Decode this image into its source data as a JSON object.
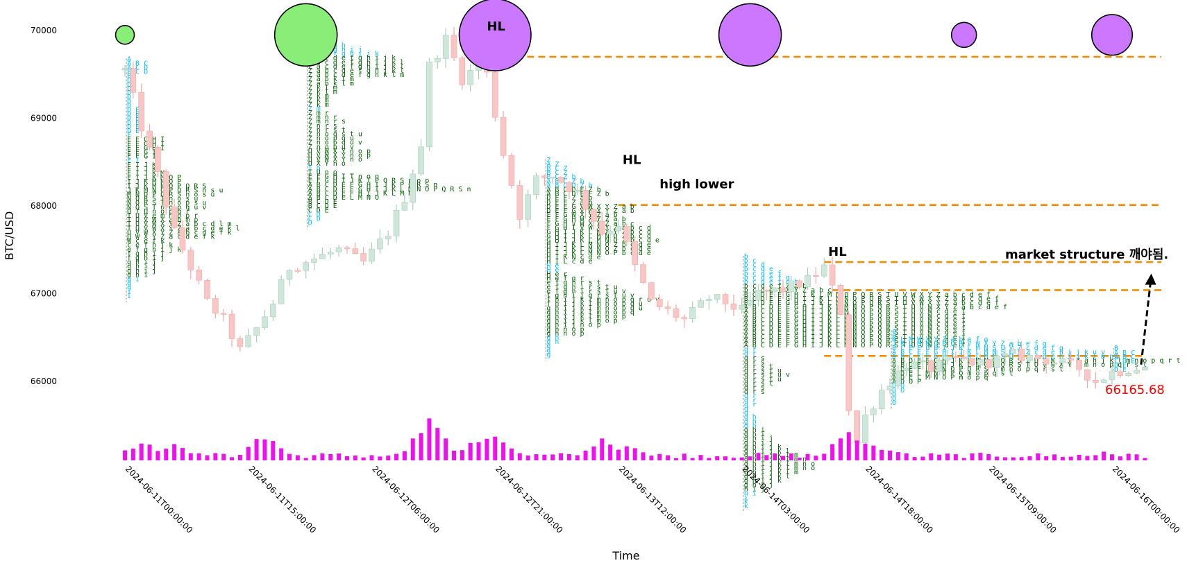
{
  "chart_data": {
    "type": "candlestick",
    "ylabel": "BTC/USD",
    "xlabel": "Time",
    "ylim": [
      64850,
      70300
    ],
    "xlim": [
      "2024-06-11T00:00:00",
      "2024-06-16T06:00:00"
    ],
    "y_ticks": [
      66000,
      67000,
      68000,
      69000,
      70000
    ],
    "x_ticks": [
      "2024-06-11T00:00:00",
      "2024-06-11T15:00:00",
      "2024-06-12T06:00:00",
      "2024-06-12T21:00:00",
      "2024-06-13T12:00:00",
      "2024-06-14T03:00:00",
      "2024-06-14T18:00:00",
      "2024-06-15T09:00:00",
      "2024-06-16T00:00:00"
    ],
    "colors": {
      "up": "#cfe6db",
      "up_edge": "#a9cfbd",
      "down": "#f8c7c5",
      "down_edge": "#f4a8a5",
      "volume": "#ee11ee",
      "level_line": "#f28c00",
      "bubble_buy": "#88ee77",
      "bubble_sell": "#cc77ff",
      "tpo_cyan": "#00bfff",
      "tpo_green": "#006400",
      "last_price": "#ff0000"
    },
    "price_path": [
      [
        "2024-06-11T00:00:00",
        69550
      ],
      [
        "2024-06-11T02:00:00",
        68900
      ],
      [
        "2024-06-11T04:00:00",
        68350
      ],
      [
        "2024-06-11T06:00:00",
        67700
      ],
      [
        "2024-06-11T08:00:00",
        67300
      ],
      [
        "2024-06-11T10:00:00",
        66900
      ],
      [
        "2024-06-11T12:00:00",
        66700
      ],
      [
        "2024-06-11T14:00:00",
        66350
      ],
      [
        "2024-06-11T16:00:00",
        66600
      ],
      [
        "2024-06-11T18:00:00",
        66900
      ],
      [
        "2024-06-11T20:00:00",
        67300
      ],
      [
        "2024-06-11T23:00:00",
        67400
      ],
      [
        "2024-06-12T02:00:00",
        67500
      ],
      [
        "2024-06-12T05:00:00",
        67350
      ],
      [
        "2024-06-12T08:00:00",
        67700
      ],
      [
        "2024-06-12T10:00:00",
        68100
      ],
      [
        "2024-06-12T12:00:00",
        68700
      ],
      [
        "2024-06-12T13:00:00",
        69600
      ],
      [
        "2024-06-12T15:00:00",
        69900
      ],
      [
        "2024-06-12T17:00:00",
        69450
      ],
      [
        "2024-06-12T19:00:00",
        69600
      ],
      [
        "2024-06-12T20:00:00",
        69500
      ],
      [
        "2024-06-12T22:00:00",
        68600
      ],
      [
        "2024-06-13T00:00:00",
        67900
      ],
      [
        "2024-06-13T02:00:00",
        68300
      ],
      [
        "2024-06-13T04:00:00",
        68350
      ],
      [
        "2024-06-13T07:00:00",
        68150
      ],
      [
        "2024-06-13T10:00:00",
        67700
      ],
      [
        "2024-06-13T12:00:00",
        67800
      ],
      [
        "2024-06-13T14:00:00",
        67300
      ],
      [
        "2024-06-13T16:00:00",
        66900
      ],
      [
        "2024-06-13T18:00:00",
        66800
      ],
      [
        "2024-06-13T20:00:00",
        66700
      ],
      [
        "2024-06-13T23:00:00",
        66950
      ],
      [
        "2024-06-14T01:00:00",
        66900
      ],
      [
        "2024-06-14T03:00:00",
        66800
      ],
      [
        "2024-06-14T05:00:00",
        67000
      ],
      [
        "2024-06-14T08:00:00",
        67050
      ],
      [
        "2024-06-14T11:00:00",
        67150
      ],
      [
        "2024-06-14T13:00:00",
        67300
      ],
      [
        "2024-06-14T15:00:00",
        66800
      ],
      [
        "2024-06-14T16:00:00",
        65700
      ],
      [
        "2024-06-14T17:00:00",
        65300
      ],
      [
        "2024-06-14T18:00:00",
        65600
      ],
      [
        "2024-06-14T20:00:00",
        65900
      ],
      [
        "2024-06-14T23:00:00",
        66200
      ],
      [
        "2024-06-15T02:00:00",
        66150
      ],
      [
        "2024-06-15T05:00:00",
        66250
      ],
      [
        "2024-06-15T08:00:00",
        66200
      ],
      [
        "2024-06-15T12:00:00",
        66300
      ],
      [
        "2024-06-15T16:00:00",
        66250
      ],
      [
        "2024-06-15T20:00:00",
        66150
      ],
      [
        "2024-06-15T22:00:00",
        66000
      ],
      [
        "2024-06-16T00:00:00",
        66100
      ],
      [
        "2024-06-16T02:00:00",
        66150
      ],
      [
        "2024-06-16T04:00:00",
        66165.68
      ]
    ],
    "volume_spikes": [
      [
        "2024-06-11T02:00:00",
        0.5
      ],
      [
        "2024-06-11T06:00:00",
        0.45
      ],
      [
        "2024-06-11T17:00:00",
        0.65
      ],
      [
        "2024-06-12T13:00:00",
        1.0
      ],
      [
        "2024-06-12T19:00:00",
        0.55
      ],
      [
        "2024-06-12T21:00:00",
        0.7
      ],
      [
        "2024-06-13T10:00:00",
        0.5
      ],
      [
        "2024-06-13T13:00:00",
        0.45
      ],
      [
        "2024-06-14T16:00:00",
        0.75
      ],
      [
        "2024-06-14T18:00:00",
        0.5
      ],
      [
        "2024-06-14T21:00:00",
        0.3
      ],
      [
        "2024-06-15T23:00:00",
        0.2
      ]
    ],
    "levels": [
      {
        "from": "2024-06-12T19:30:00",
        "to": "2024-06-16T06:00:00",
        "y": 69700
      },
      {
        "from": "2024-06-13T12:00:00",
        "to": "2024-06-16T06:00:00",
        "y": 68010
      },
      {
        "from": "2024-06-14T13:00:00",
        "to": "2024-06-16T06:00:00",
        "y": 67360
      },
      {
        "from": "2024-06-14T14:00:00",
        "to": "2024-06-16T06:00:00",
        "y": 67040
      },
      {
        "from": "2024-06-14T13:00:00",
        "to": "2024-06-16T04:00:00",
        "y": 66290
      }
    ],
    "bubbles": [
      {
        "x": "2024-06-11T00:00:00",
        "y": 69950,
        "size": 0.3,
        "kind": "buy"
      },
      {
        "x": "2024-06-11T22:00:00",
        "y": 69950,
        "size": 1.0,
        "kind": "buy"
      },
      {
        "x": "2024-06-12T21:00:00",
        "y": 69950,
        "size": 1.15,
        "kind": "sell"
      },
      {
        "x": "2024-06-14T04:00:00",
        "y": 69950,
        "size": 1.0,
        "kind": "sell"
      },
      {
        "x": "2024-06-15T06:00:00",
        "y": 69950,
        "size": 0.4,
        "kind": "sell"
      },
      {
        "x": "2024-06-16T00:00:00",
        "y": 69950,
        "size": 0.65,
        "kind": "sell"
      }
    ],
    "annotations": [
      {
        "text": "HL",
        "x": "2024-06-12T20:00:00",
        "y": 70000
      },
      {
        "text": "HL",
        "x": "2024-06-13T12:30:00",
        "y": 68480
      },
      {
        "text": "high lower",
        "x": "2024-06-13T17:00:00",
        "y": 68200
      },
      {
        "text": "HL",
        "x": "2024-06-14T13:30:00",
        "y": 67430
      },
      {
        "text": "market structure 깨야됨.",
        "x": "2024-06-15T11:00:00",
        "y": 67400
      }
    ],
    "last_price": {
      "value": "66165.68",
      "x": "2024-06-16T00:00:00",
      "y": 66080
    },
    "arrow": {
      "from": [
        "2024-06-16T01:00:00",
        66270
      ],
      "to": [
        "2024-06-16T03:00:00",
        67450
      ]
    },
    "tpo_profiles": [
      {
        "x": "2024-06-11T00:00:00",
        "top": 69650,
        "rows": [
          "A",
          "A B C",
          "A C D",
          "B C D",
          "B",
          "D",
          "D",
          "D",
          "D",
          "D",
          "D",
          "D",
          "D E",
          "D E",
          "D E",
          "D E",
          "D E",
          "D E",
          "E",
          "E F G H I",
          "E F G H I",
          "E F G H I",
          "E F G I",
          "E F G I",
          "E I",
          "E I J K",
          "E I J K",
          "E I J K M",
          "E I J K M O P",
          "I J K M N O P",
          "I J K M N O P Q R S",
          "J K M N O P Q R S n s u",
          "M N O P Q R S n o s u",
          "N Q R S T n o s u",
          "N Q R S T n o p s u",
          "N Q S T n o p q u v",
          "Q T U n o p q r",
          "T U V e m n o p r",
          "T U V W X a b m p",
          "T U V W X Y Z a b c d l m",
          "T U V W X Y Z a b c d e k l",
          "U V W X Y Z a b c d e f k",
          "U W X Y Z a c d e f k",
          "W c e f k",
          "c e f h j k",
          "e f g h i j k",
          "f g h i j",
          "f g h i j",
          "g h i j",
          "g h i j",
          "g h i j",
          "g h i",
          "g i",
          "g",
          "g",
          "i",
          "i"
        ]
      },
      {
        "x": "2024-06-11T22:00:00",
        "top": 70000,
        "rows": [
          "d",
          "d e",
          "d e",
          "d e f",
          "d e f g h",
          "d e f g h i j",
          "Z d e f g h i j k",
          "Z a c d e f g h i j k",
          "Z a c d e f g h i j k l",
          "Z a c d e f g h i j k l",
          "Z a b c d e f g h j k l",
          "Z a b c d e f g h k l m",
          "Z a b k l m",
          "Z a b k l m",
          "Z k l m",
          "Z k l m",
          "Z k m",
          "Z k m",
          "Z k m",
          "Z m",
          "Z m r",
          "Z m n r",
          "Z m n r s",
          "Z n r s",
          "Z n r s t",
          "Z n o q s t u",
          "Z n o p q u",
          "Z n o p q u v",
          "Z n o p u v",
          "U V W X Y n o p",
          "U V W X Y n o p",
          "U V W X Y n o",
          "U X Y n o",
          "T o",
          "T U n o",
          "E F G H I T n o p",
          "E F G H I J K T P Q R S n o p",
          "A B C D E F G H I J K P Q R S n",
          "A B C D E F G H I J K L M N O P Q R S n",
          "A B C D E F H I J K L M N",
          "A B C D E L M N O",
          "B C D E",
          "B C D E",
          "C D E",
          "C D",
          "C D",
          "D"
        ]
      },
      {
        "x": "2024-06-13T03:00:00",
        "top": 68500,
        "rows": [
          "Z",
          "A Z",
          "B C Z",
          "B C Z",
          "B C Z b",
          "A B C Z b",
          "A B C D Z b",
          "A B C D E Z b",
          "A B C D E F Z b",
          "D E F Z a b",
          "D E F Z a b",
          "D E F G V W X Y Z a b",
          "D E F G V W X Y Z a b",
          "E F G W X Y Z a b",
          "E F G H W X Y Z a b",
          "F G H V W X Y Z a b c",
          "F G H I V W X Y Z a b c d",
          "G H I J K L W X Y Z b c d",
          "G H I J K L M N O Z b c d",
          "G H I J K L M N O Z b c d e",
          "H I J K L M N O Z b c d e",
          "H I J K L M N O Z b c d e",
          "H I J K L M N O P b c d e",
          "H I K N c d e",
          "H I L c d e",
          "H e",
          "H e",
          "H e r",
          "H e f g r",
          "e f g h r s t",
          "e f g h i r s t u",
          "e f g h i r s t u v",
          "f g h i j q r s t u v",
          "f h i j k l m n o p q r u v",
          "f h i j k l m n o p q u",
          "g h i j k l m n o p q u",
          "g h i j k l m n o p q",
          "g h i j k l m n o p",
          "g h i j k l m o p",
          "g h i j n o p",
          "g h n o p",
          "g h n o p",
          "g h",
          "g h",
          "g",
          "g",
          "g"
        ]
      },
      {
        "x": "2024-06-14T03:00:00",
        "top": 67400,
        "rows": [
          "b",
          "b c",
          "b c d",
          "b c d e",
          "b c d e f",
          "b c d e f g",
          "b c d e f g h",
          "b c d e f Z a b",
          "b c d e f X Y Z a b c",
          "B C D E F G H I K L M N O P Q R S T U V W X Y Z a b c d e f",
          "B C D E F G H I J K L M N O P Q R S T U V W X Y Z a b c d e f",
          "B C D E F G H I J K L M N O P Q R S T U V W X Y Z a b c d e f",
          "A B C D E F G H I J K L M N O P Q R S T U V W X Y Z a b c d e f",
          "A B C D E F G H I J K L M N O P Q R S T U V W c d e f",
          "A B C D E F G H I J K L M N O P Q R S T U V W c d e f",
          "A B C D E F G H I J K L M N O P Q R S T U V W c d e f",
          "A B C D E F G H I J K L M N O P Q R S T U V W c d e f",
          "A B C D E F G H I J K L M N O P Q R S T U V W c d e f",
          "A B C D E F G H I J K L M N O P Q R S T U V W c d e f",
          "A B C D E F G H I J K L M N O P Q R S T U V W c d e f",
          "A B C D E F G H I J K L M N O P Q R S T U V W c d e f",
          "A B C D E F G H I J K L M N O P Q R S T U V W c d e f",
          "q r",
          "q r",
          "q r s",
          "q r s",
          "q r s t",
          "q r s t u",
          "q r s t u v",
          "q r s t u",
          "q r s t",
          "q r s",
          "q r s",
          "q r",
          "q r",
          "q r",
          "q",
          "q",
          "g h",
          "g h",
          "g h",
          "g h i",
          "g h i",
          "g h i j",
          "g h i j",
          "g h i j k",
          "g h i j k l",
          "g h i j k l m",
          "g h i j k l m n",
          "g h i j k l m n o",
          "g h i j k l m n o",
          "g h i j k l m",
          "g h i j k l",
          "g h i j k",
          "g h i j",
          "h i j",
          "h i",
          "i",
          "k",
          "k"
        ]
      },
      {
        "x": "2024-06-14T21:00:00",
        "top": 66550,
        "rows": [
          "e",
          "e",
          "K L M W X Y Z a b e f g",
          "J K L M N O P Q R V W X Y Z a b e f g",
          "B C E F G H I J K L M N S U V Z c d e f g",
          "A B C E F G H I J K L M N S U V Z c d e h i j k u v",
          "A B C E F G H I J K L M N S U V Z c d e h i j k l m n",
          "A B D E F G H J K L M N O Q R S T U V W X Y Z a h j k l m n o p q r t",
          "A B D E F G H J K L N O P Q R S T U V W X Y Z m n o p q r s t",
          "A D E F L M N O P Q R S T m n o p q r s t",
          "A D E L M N O P Q m o p q s t",
          "A D E L M N O P m o p q",
          "A D O P",
          "D O",
          "D O",
          "O",
          "O",
          "O"
        ]
      },
      {
        "x": "2024-06-16T00:00:00",
        "top": 66350,
        "rows": [
          "B",
          "A B C",
          "A B C",
          "C D E",
          "D E",
          "D E"
        ]
      }
    ]
  }
}
